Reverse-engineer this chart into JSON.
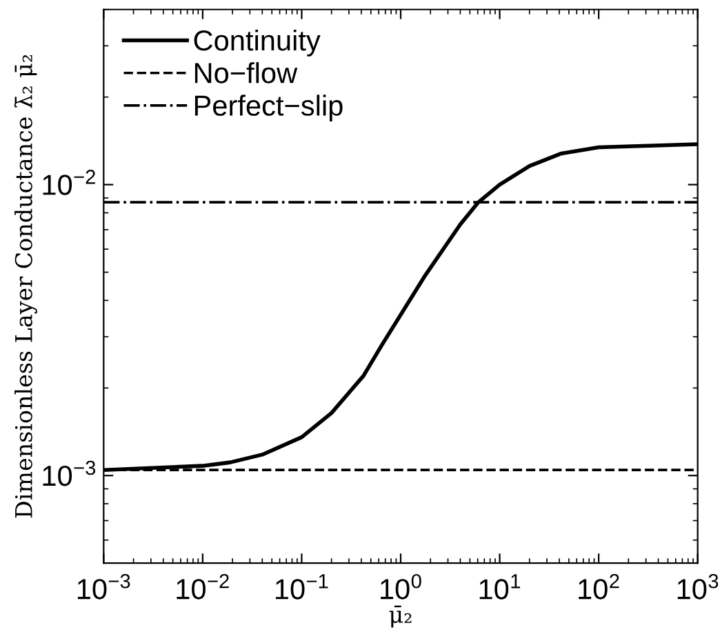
{
  "chart_data": {
    "type": "line",
    "xlabel": "μ̄₂",
    "ylabel": "Dimensionless Layer Conductance λ̄₂ μ̄₂",
    "log": "xy",
    "xlim": [
      0.001,
      1000
    ],
    "xticks": [
      {
        "value": 0.001,
        "label": "10$^{−3}$"
      },
      {
        "value": 0.01,
        "label": "10$^{−2}$"
      },
      {
        "value": 0.1,
        "label": "10$^{−1}$"
      },
      {
        "value": 1,
        "label": "10$^{0}$"
      },
      {
        "value": 10,
        "label": "10$^{1}$"
      },
      {
        "value": 100,
        "label": "10$^{2}$"
      },
      {
        "value": 1000,
        "label": "10$^{3}$"
      }
    ],
    "ylim": [
      0.0005,
      0.04
    ],
    "yticks": [
      {
        "value": 0.001,
        "label": "10$^{−3}$"
      },
      {
        "value": 0.01,
        "label": "10$^{−2}$"
      }
    ],
    "grid": false,
    "legend": "top left",
    "marker": "none",
    "series": [
      {
        "name": "Continuity",
        "color": "#000000",
        "line_style": "solid",
        "x": [
          0.001,
          0.01,
          0.019,
          0.04,
          0.1,
          0.2,
          0.42,
          0.65,
          1.78,
          4,
          6.1,
          10,
          20,
          42,
          100,
          1000
        ],
        "values": [
          0.001045,
          0.00108,
          0.00111,
          0.00118,
          0.001355,
          0.00164,
          0.0022,
          0.00282,
          0.00489,
          0.0073,
          0.0087,
          0.01,
          0.01159,
          0.0128,
          0.01343,
          0.01377
        ]
      },
      {
        "name": "No−flow",
        "color": "#000000",
        "line_style": "dashed",
        "x": [
          0.001,
          1000
        ],
        "values": [
          0.001045,
          0.001045
        ]
      },
      {
        "name": "Perfect−slip",
        "color": "#000000",
        "line_style": "dashdot",
        "x": [
          0.001,
          1000
        ],
        "values": [
          0.0087,
          0.0087
        ]
      }
    ]
  }
}
